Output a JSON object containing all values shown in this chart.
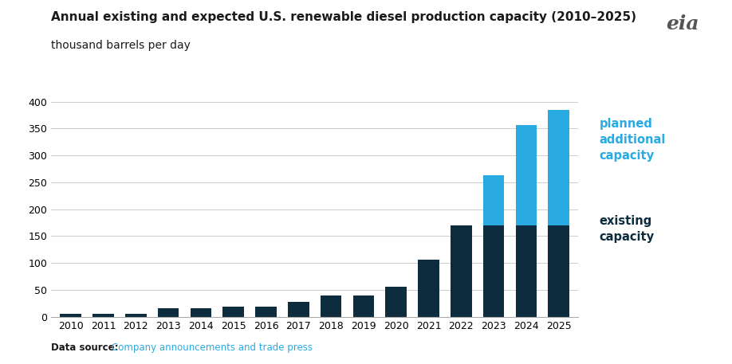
{
  "title_line1": "Annual existing and expected U.S. renewable diesel production capacity (2010–2025)",
  "title_line2": "thousand barrels per day",
  "years": [
    2010,
    2011,
    2012,
    2013,
    2014,
    2015,
    2016,
    2017,
    2018,
    2019,
    2020,
    2021,
    2022,
    2023,
    2024,
    2025
  ],
  "existing_capacity": [
    5,
    6,
    5,
    15,
    16,
    18,
    18,
    27,
    40,
    40,
    55,
    106,
    170,
    170,
    170,
    170
  ],
  "planned_capacity": [
    0,
    0,
    0,
    0,
    0,
    0,
    0,
    0,
    0,
    0,
    0,
    0,
    0,
    93,
    187,
    215
  ],
  "existing_color": "#0d2d3e",
  "planned_color": "#29abe2",
  "ylim": [
    0,
    420
  ],
  "yticks": [
    0,
    50,
    100,
    150,
    200,
    250,
    300,
    350,
    400
  ],
  "data_source_bold": "Data source:",
  "data_source_text": "Company announcements and trade press",
  "data_source_color": "#29abe2",
  "data_source_bold_color": "#1a1a1a",
  "legend_planned": "planned\nadditional\ncapacity",
  "legend_existing": "existing\ncapacity",
  "legend_planned_color": "#29abe2",
  "legend_existing_color": "#0d2d3e",
  "background_color": "#ffffff",
  "grid_color": "#cccccc"
}
